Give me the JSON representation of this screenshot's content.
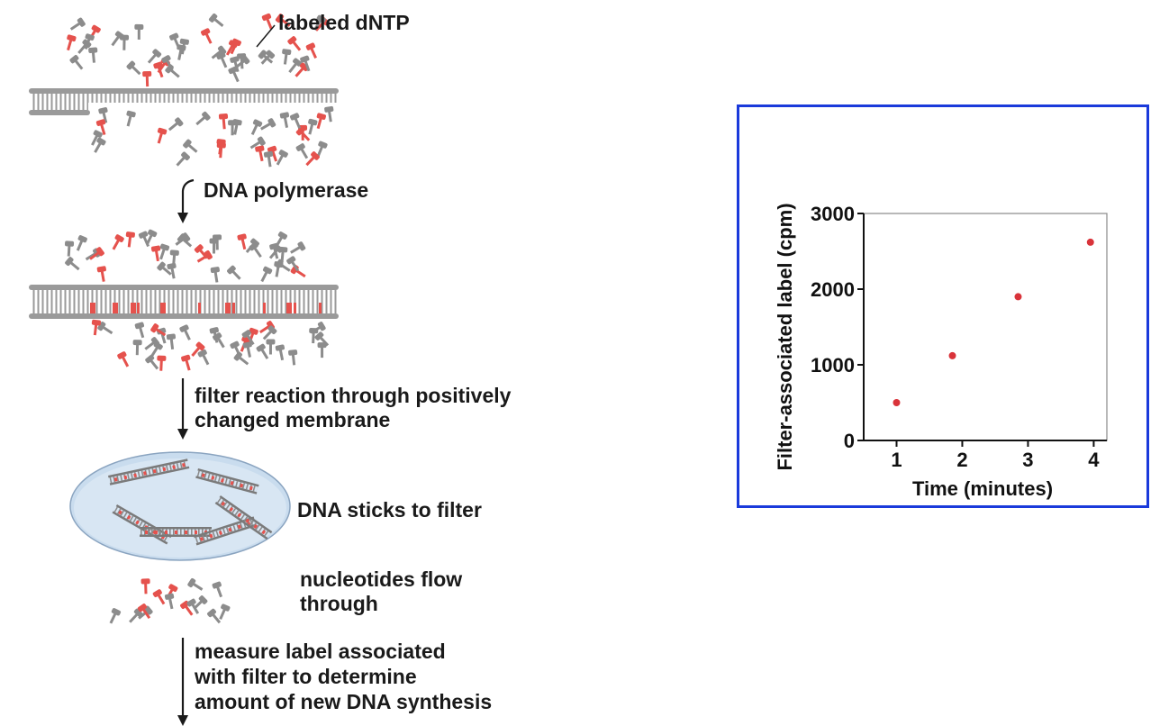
{
  "diagram": {
    "label_labeled_dntp": "labeled dNTP",
    "label_polymerase": "DNA polymerase",
    "label_filter_line1": "filter reaction through positively",
    "label_filter_line2": "changed membrane",
    "label_sticks": "DNA sticks to filter",
    "label_flow_line1": "nucleotides flow",
    "label_flow_line2": "through",
    "label_measure_line1": "measure label associated",
    "label_measure_line2": "with filter to determine",
    "label_measure_line3": "amount of new DNA synthesis",
    "colors": {
      "labeled": "#e5524d",
      "unlabeled": "#8c8c8c",
      "dna": "#9a9a9a",
      "filter_fill": "#c9dcee",
      "filter_stroke": "#8aa4c0"
    }
  },
  "chart_data": {
    "type": "scatter",
    "title": "",
    "xlabel": "Time (minutes)",
    "ylabel": "Filter-associated label (cpm)",
    "x_ticks": [
      "1",
      "2",
      "3",
      "4"
    ],
    "y_ticks": [
      "0",
      "1000",
      "2000",
      "3000"
    ],
    "xlim": [
      0.5,
      4.2
    ],
    "ylim": [
      0,
      3000
    ],
    "points": [
      {
        "x": 1,
        "y": 500
      },
      {
        "x": 1.85,
        "y": 1120
      },
      {
        "x": 2.85,
        "y": 1900
      },
      {
        "x": 3.95,
        "y": 2620
      }
    ],
    "point_color": "#d9333a",
    "frame_color": "#1a3adb"
  }
}
